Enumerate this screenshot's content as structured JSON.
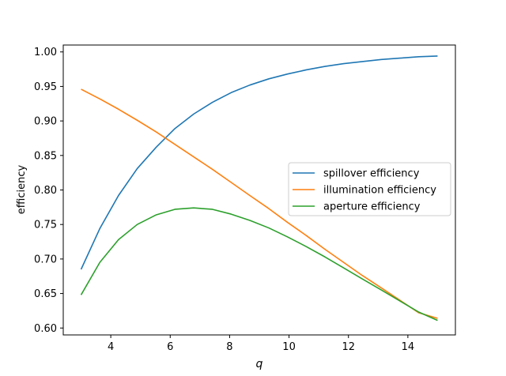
{
  "chart_data": {
    "type": "line",
    "title": "",
    "xlabel": "q",
    "ylabel": "efficiency",
    "xlim": [
      2.4,
      15.6
    ],
    "ylim": [
      0.59,
      1.01
    ],
    "xticks": [
      4,
      6,
      8,
      10,
      12,
      14
    ],
    "xtick_labels": [
      "4",
      "6",
      "8",
      "10",
      "12",
      "14"
    ],
    "yticks": [
      0.6,
      0.65,
      0.7,
      0.75,
      0.8,
      0.85,
      0.9,
      0.95,
      1.0
    ],
    "ytick_labels": [
      "0.60",
      "0.65",
      "0.70",
      "0.75",
      "0.80",
      "0.85",
      "0.90",
      "0.95",
      "1.00"
    ],
    "grid": false,
    "legend_position": "center-right",
    "x": [
      3.0,
      3.63,
      4.26,
      4.89,
      5.53,
      6.16,
      6.79,
      7.42,
      8.05,
      8.68,
      9.32,
      9.95,
      10.58,
      11.21,
      11.84,
      12.47,
      13.11,
      13.74,
      14.37,
      15.0
    ],
    "series": [
      {
        "name": "spillover efficiency",
        "color": "#1f77b4",
        "values": [
          0.685,
          0.744,
          0.792,
          0.831,
          0.862,
          0.889,
          0.91,
          0.927,
          0.941,
          0.952,
          0.961,
          0.968,
          0.974,
          0.979,
          0.983,
          0.986,
          0.989,
          0.991,
          0.993,
          0.994
        ]
      },
      {
        "name": "illumination efficiency",
        "color": "#ff7f0e",
        "values": [
          0.946,
          0.932,
          0.917,
          0.901,
          0.884,
          0.866,
          0.848,
          0.83,
          0.811,
          0.792,
          0.773,
          0.753,
          0.734,
          0.714,
          0.695,
          0.676,
          0.658,
          0.64,
          0.622,
          0.614
        ]
      },
      {
        "name": "aperture efficiency",
        "color": "#2ca02c",
        "values": [
          0.648,
          0.695,
          0.728,
          0.75,
          0.764,
          0.772,
          0.774,
          0.772,
          0.765,
          0.756,
          0.745,
          0.732,
          0.718,
          0.703,
          0.687,
          0.671,
          0.655,
          0.639,
          0.623,
          0.611
        ]
      }
    ]
  }
}
